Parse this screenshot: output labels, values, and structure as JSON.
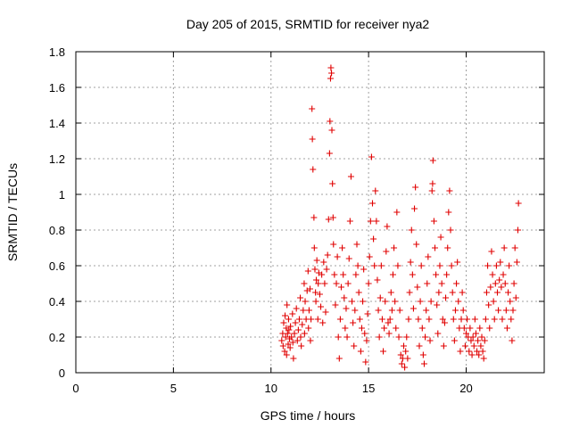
{
  "chart_data": {
    "type": "scatter",
    "title": "Day 205 of 2015, SRMTID for receiver nya2",
    "xlabel": "GPS time / hours",
    "ylabel": "SRMTID / TECUs",
    "xlim": [
      0,
      24
    ],
    "ylim": [
      0,
      1.8
    ],
    "xticks": [
      0,
      5,
      10,
      15,
      20
    ],
    "yticks": [
      0,
      0.2,
      0.4,
      0.6,
      0.8,
      1,
      1.2,
      1.4,
      1.6,
      1.8
    ],
    "xtick_labels": [
      "0",
      "5",
      "10",
      "15",
      "20"
    ],
    "ytick_labels": [
      "0",
      "0.2",
      "0.4",
      "0.6",
      "0.8",
      "1",
      "1.2",
      "1.4",
      "1.6",
      "1.8"
    ],
    "grid": true,
    "marker": "plus",
    "color": "#e00000",
    "x_range_of_data": [
      10.5,
      22.7
    ],
    "series": [
      {
        "name": "",
        "points": [
          [
            10.55,
            0.18
          ],
          [
            10.6,
            0.22
          ],
          [
            10.62,
            0.15
          ],
          [
            10.65,
            0.28
          ],
          [
            10.7,
            0.12
          ],
          [
            10.72,
            0.32
          ],
          [
            10.75,
            0.2
          ],
          [
            10.78,
            0.25
          ],
          [
            10.8,
            0.1
          ],
          [
            10.82,
            0.38
          ],
          [
            10.85,
            0.22
          ],
          [
            10.88,
            0.16
          ],
          [
            10.9,
            0.3
          ],
          [
            10.92,
            0.24
          ],
          [
            10.95,
            0.19
          ],
          [
            10.98,
            0.14
          ],
          [
            11.0,
            0.26
          ],
          [
            11.05,
            0.2
          ],
          [
            11.1,
            0.33
          ],
          [
            11.12,
            0.17
          ],
          [
            11.15,
            0.08
          ],
          [
            11.2,
            0.22
          ],
          [
            11.25,
            0.28
          ],
          [
            11.3,
            0.36
          ],
          [
            11.35,
            0.18
          ],
          [
            11.4,
            0.24
          ],
          [
            11.45,
            0.3
          ],
          [
            11.5,
            0.42
          ],
          [
            11.52,
            0.2
          ],
          [
            11.55,
            0.15
          ],
          [
            11.6,
            0.27
          ],
          [
            11.65,
            0.35
          ],
          [
            11.7,
            0.5
          ],
          [
            11.72,
            0.22
          ],
          [
            11.75,
            0.4
          ],
          [
            11.8,
            0.3
          ],
          [
            11.85,
            0.46
          ],
          [
            11.9,
            0.57
          ],
          [
            11.92,
            0.25
          ],
          [
            11.95,
            0.35
          ],
          [
            12.0,
            0.47
          ],
          [
            12.02,
            0.18
          ],
          [
            12.05,
            0.3
          ],
          [
            12.1,
            1.48
          ],
          [
            12.12,
            1.31
          ],
          [
            12.15,
            1.14
          ],
          [
            12.2,
            0.87
          ],
          [
            12.22,
            0.7
          ],
          [
            12.25,
            0.58
          ],
          [
            12.28,
            0.45
          ],
          [
            12.3,
            0.4
          ],
          [
            12.32,
            0.52
          ],
          [
            12.35,
            0.63
          ],
          [
            12.4,
            0.3
          ],
          [
            12.42,
            0.5
          ],
          [
            12.45,
            0.56
          ],
          [
            12.5,
            0.44
          ],
          [
            12.55,
            0.37
          ],
          [
            12.6,
            0.55
          ],
          [
            12.65,
            0.28
          ],
          [
            12.7,
            0.62
          ],
          [
            12.75,
            0.5
          ],
          [
            12.8,
            0.34
          ],
          [
            12.85,
            0.58
          ],
          [
            12.9,
            0.66
          ],
          [
            12.95,
            0.86
          ],
          [
            13.0,
            1.23
          ],
          [
            13.02,
            1.41
          ],
          [
            13.05,
            1.65
          ],
          [
            13.07,
            1.71
          ],
          [
            13.1,
            1.68
          ],
          [
            13.12,
            1.36
          ],
          [
            13.15,
            1.06
          ],
          [
            13.18,
            0.87
          ],
          [
            13.2,
            0.72
          ],
          [
            13.25,
            0.55
          ],
          [
            13.3,
            0.38
          ],
          [
            13.35,
            0.5
          ],
          [
            13.4,
            0.65
          ],
          [
            13.45,
            0.2
          ],
          [
            13.5,
            0.08
          ],
          [
            13.55,
            0.3
          ],
          [
            13.6,
            0.48
          ],
          [
            13.65,
            0.7
          ],
          [
            13.7,
            0.55
          ],
          [
            13.75,
            0.42
          ],
          [
            13.8,
            0.25
          ],
          [
            13.85,
            0.36
          ],
          [
            13.9,
            0.2
          ],
          [
            13.95,
            0.5
          ],
          [
            14.0,
            0.64
          ],
          [
            14.05,
            0.85
          ],
          [
            14.1,
            1.1
          ],
          [
            14.15,
            0.4
          ],
          [
            14.2,
            0.28
          ],
          [
            14.25,
            0.15
          ],
          [
            14.3,
            0.35
          ],
          [
            14.35,
            0.55
          ],
          [
            14.4,
            0.72
          ],
          [
            14.45,
            0.6
          ],
          [
            14.5,
            0.45
          ],
          [
            14.55,
            0.3
          ],
          [
            14.6,
            0.12
          ],
          [
            14.65,
            0.25
          ],
          [
            14.7,
            0.4
          ],
          [
            14.75,
            0.58
          ],
          [
            14.8,
            0.22
          ],
          [
            14.85,
            0.06
          ],
          [
            14.9,
            0.18
          ],
          [
            14.95,
            0.33
          ],
          [
            15.0,
            0.5
          ],
          [
            15.05,
            0.65
          ],
          [
            15.1,
            0.85
          ],
          [
            15.15,
            1.21
          ],
          [
            15.2,
            0.95
          ],
          [
            15.25,
            0.75
          ],
          [
            15.3,
            0.6
          ],
          [
            15.35,
            1.02
          ],
          [
            15.4,
            0.85
          ],
          [
            15.45,
            0.52
          ],
          [
            15.5,
            0.35
          ],
          [
            15.55,
            0.2
          ],
          [
            15.6,
            0.42
          ],
          [
            15.65,
            0.6
          ],
          [
            15.7,
            0.3
          ],
          [
            15.75,
            0.12
          ],
          [
            15.8,
            0.25
          ],
          [
            15.85,
            0.4
          ],
          [
            15.9,
            0.68
          ],
          [
            15.95,
            0.82
          ],
          [
            16.0,
            0.28
          ],
          [
            16.05,
            0.22
          ],
          [
            16.1,
            0.3
          ],
          [
            16.15,
            0.45
          ],
          [
            16.2,
            0.35
          ],
          [
            16.25,
            0.55
          ],
          [
            16.3,
            0.7
          ],
          [
            16.35,
            0.4
          ],
          [
            16.4,
            0.25
          ],
          [
            16.45,
            0.9
          ],
          [
            16.5,
            0.6
          ],
          [
            16.55,
            0.2
          ],
          [
            16.6,
            0.35
          ],
          [
            16.65,
            0.1
          ],
          [
            16.7,
            0.05
          ],
          [
            16.75,
            0.08
          ],
          [
            16.8,
            0.15
          ],
          [
            16.85,
            0.03
          ],
          [
            16.9,
            0.12
          ],
          [
            16.95,
            0.2
          ],
          [
            17.0,
            0.08
          ],
          [
            17.05,
            0.3
          ],
          [
            17.1,
            0.45
          ],
          [
            17.15,
            0.62
          ],
          [
            17.2,
            0.8
          ],
          [
            17.25,
            0.55
          ],
          [
            17.3,
            0.36
          ],
          [
            17.35,
            0.92
          ],
          [
            17.4,
            1.04
          ],
          [
            17.45,
            0.72
          ],
          [
            17.5,
            0.48
          ],
          [
            17.55,
            0.3
          ],
          [
            17.6,
            0.15
          ],
          [
            17.65,
            0.4
          ],
          [
            17.7,
            0.6
          ],
          [
            17.75,
            0.25
          ],
          [
            17.8,
            0.1
          ],
          [
            17.85,
            0.05
          ],
          [
            17.9,
            0.2
          ],
          [
            17.95,
            0.35
          ],
          [
            18.0,
            0.5
          ],
          [
            18.05,
            0.65
          ],
          [
            18.1,
            0.3
          ],
          [
            18.15,
            0.18
          ],
          [
            18.2,
            0.4
          ],
          [
            18.25,
            1.02
          ],
          [
            18.28,
            1.06
          ],
          [
            18.3,
            1.19
          ],
          [
            18.35,
            0.85
          ],
          [
            18.4,
            0.7
          ],
          [
            18.45,
            0.55
          ],
          [
            18.5,
            0.38
          ],
          [
            18.55,
            0.22
          ],
          [
            18.6,
            0.45
          ],
          [
            18.65,
            0.6
          ],
          [
            18.7,
            0.76
          ],
          [
            18.75,
            0.5
          ],
          [
            18.8,
            0.3
          ],
          [
            18.85,
            0.15
          ],
          [
            18.9,
            0.28
          ],
          [
            18.95,
            0.42
          ],
          [
            19.0,
            0.55
          ],
          [
            19.05,
            0.7
          ],
          [
            19.1,
            0.9
          ],
          [
            19.15,
            1.02
          ],
          [
            19.2,
            0.8
          ],
          [
            19.25,
            0.6
          ],
          [
            19.3,
            0.45
          ],
          [
            19.35,
            0.3
          ],
          [
            19.4,
            0.18
          ],
          [
            19.45,
            0.35
          ],
          [
            19.5,
            0.5
          ],
          [
            19.55,
            0.62
          ],
          [
            19.6,
            0.4
          ],
          [
            19.65,
            0.25
          ],
          [
            19.7,
            0.12
          ],
          [
            19.75,
            0.3
          ],
          [
            19.8,
            0.45
          ],
          [
            19.85,
            0.35
          ],
          [
            19.9,
            0.25
          ],
          [
            19.95,
            0.15
          ],
          [
            20.0,
            0.22
          ],
          [
            20.05,
            0.3
          ],
          [
            20.1,
            0.2
          ],
          [
            20.15,
            0.12
          ],
          [
            20.2,
            0.25
          ],
          [
            20.25,
            0.18
          ],
          [
            20.3,
            0.1
          ],
          [
            20.35,
            0.2
          ],
          [
            20.4,
            0.15
          ],
          [
            20.45,
            0.3
          ],
          [
            20.5,
            0.22
          ],
          [
            20.55,
            0.12
          ],
          [
            20.6,
            0.18
          ],
          [
            20.65,
            0.1
          ],
          [
            20.7,
            0.25
          ],
          [
            20.75,
            0.15
          ],
          [
            20.8,
            0.2
          ],
          [
            20.85,
            0.12
          ],
          [
            20.9,
            0.08
          ],
          [
            20.95,
            0.18
          ],
          [
            21.0,
            0.3
          ],
          [
            21.05,
            0.45
          ],
          [
            21.1,
            0.6
          ],
          [
            21.15,
            0.38
          ],
          [
            21.2,
            0.25
          ],
          [
            21.25,
            0.48
          ],
          [
            21.3,
            0.68
          ],
          [
            21.35,
            0.55
          ],
          [
            21.4,
            0.4
          ],
          [
            21.45,
            0.3
          ],
          [
            21.5,
            0.5
          ],
          [
            21.55,
            0.6
          ],
          [
            21.6,
            0.45
          ],
          [
            21.65,
            0.35
          ],
          [
            21.7,
            0.52
          ],
          [
            21.75,
            0.62
          ],
          [
            21.8,
            0.48
          ],
          [
            21.85,
            0.3
          ],
          [
            21.9,
            0.55
          ],
          [
            21.95,
            0.7
          ],
          [
            22.0,
            0.5
          ],
          [
            22.05,
            0.35
          ],
          [
            22.1,
            0.25
          ],
          [
            22.15,
            0.45
          ],
          [
            22.2,
            0.6
          ],
          [
            22.25,
            0.4
          ],
          [
            22.3,
            0.3
          ],
          [
            22.35,
            0.18
          ],
          [
            22.4,
            0.35
          ],
          [
            22.45,
            0.5
          ],
          [
            22.5,
            0.7
          ],
          [
            22.55,
            0.42
          ],
          [
            22.6,
            0.62
          ],
          [
            22.65,
            0.8
          ],
          [
            22.68,
            0.95
          ]
        ]
      }
    ]
  }
}
